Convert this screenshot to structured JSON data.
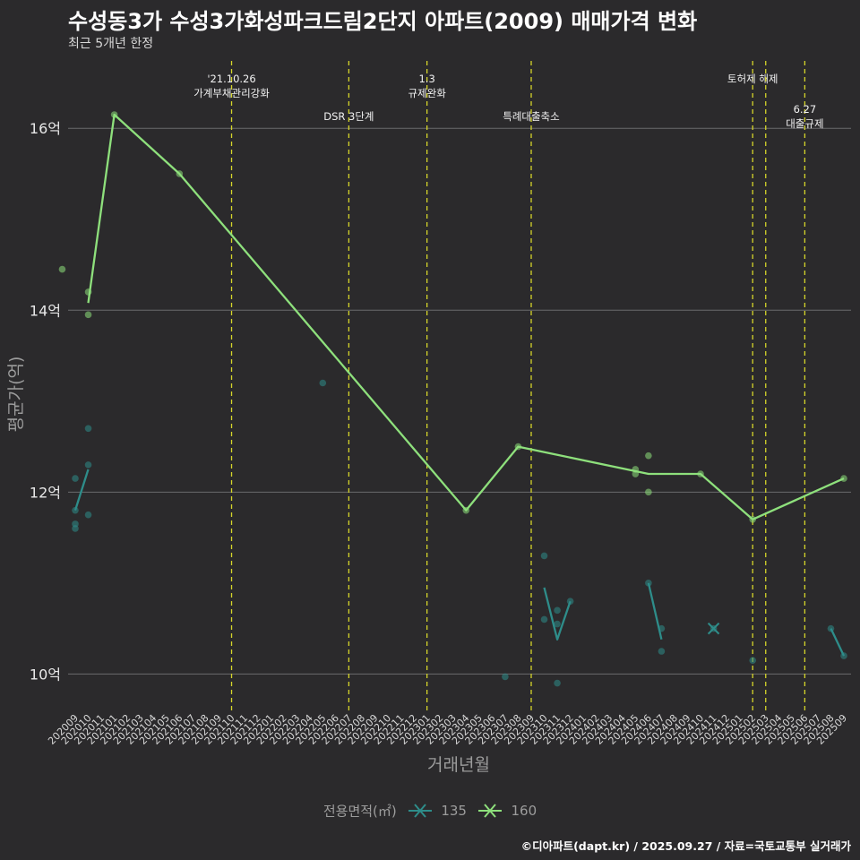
{
  "title": "수성동3가 수성3가화성파크드림2단지 아파트(2009) 매매가격 변화",
  "subtitle": "최근 5개년 한정",
  "caption": "©디아파트(dapt.kr) / 2025.09.27 / 자료=국토교통부 실거래가",
  "legend": {
    "title": "전용면적(㎡)",
    "items": [
      {
        "label": "135",
        "color": "#2e8d8a"
      },
      {
        "label": "160",
        "color": "#8ee07c"
      }
    ]
  },
  "chart_data": {
    "type": "line",
    "xlabel": "거래년월",
    "ylabel": "평균가(억)",
    "ylim": [
      9.6,
      16.8
    ],
    "yticks": [
      10,
      12,
      14,
      16
    ],
    "ytick_labels": [
      "10억",
      "12억",
      "14억",
      "16억"
    ],
    "x": [
      "202009",
      "202010",
      "202011",
      "202101",
      "202102",
      "202103",
      "202104",
      "202105",
      "202106",
      "202107",
      "202108",
      "202109",
      "202110",
      "202111",
      "202112",
      "202201",
      "202202",
      "202203",
      "202204",
      "202205",
      "202206",
      "202207",
      "202208",
      "202209",
      "202210",
      "202211",
      "202212",
      "202301",
      "202302",
      "202303",
      "202304",
      "202305",
      "202306",
      "202307",
      "202308",
      "202309",
      "202310",
      "202311",
      "202312",
      "202401",
      "202402",
      "202403",
      "202404",
      "202405",
      "202406",
      "202407",
      "202408",
      "202409",
      "202410",
      "202411",
      "202412",
      "202501",
      "202502",
      "202503",
      "202504",
      "202505",
      "202506",
      "202507",
      "202508",
      "202509"
    ],
    "grid": true,
    "legend_position": "bottom",
    "events": [
      {
        "x": "202110",
        "label": "'21.10.26\n가계부채관리강화",
        "row": 0
      },
      {
        "x": "202207",
        "label": "DSR 3단계",
        "row": 1
      },
      {
        "x": "202301",
        "label": "1.3\n규제완화",
        "row": 0
      },
      {
        "x": "202309",
        "label": "특례대출축소",
        "row": 1
      },
      {
        "x": "202502",
        "label": "토허제 해제",
        "row": 0
      },
      {
        "x": "202503",
        "label": "",
        "row": 0
      },
      {
        "x": "202506",
        "label": "6.27\n대출규제",
        "row": 2
      }
    ],
    "series": [
      {
        "name": "135",
        "color": "#2e8d8a",
        "line": [
          {
            "x": "202009",
            "y": 11.8
          },
          {
            "x": "202010",
            "y": 12.25
          }
        ],
        "line_segments": [
          [
            {
              "x": "202310",
              "y": 10.95
            },
            {
              "x": "202311",
              "y": 10.38
            },
            {
              "x": "202312",
              "y": 10.8
            }
          ],
          [
            {
              "x": "202406",
              "y": 11.0
            },
            {
              "x": "202407",
              "y": 10.38
            }
          ],
          [
            {
              "x": "202508",
              "y": 10.5
            },
            {
              "x": "202509",
              "y": 10.2
            }
          ]
        ],
        "points": [
          {
            "x": "202009",
            "y": 12.15
          },
          {
            "x": "202009",
            "y": 11.8
          },
          {
            "x": "202009",
            "y": 11.65
          },
          {
            "x": "202009",
            "y": 11.6
          },
          {
            "x": "202010",
            "y": 12.7
          },
          {
            "x": "202010",
            "y": 12.3
          },
          {
            "x": "202010",
            "y": 11.75
          },
          {
            "x": "202205",
            "y": 13.2
          },
          {
            "x": "202307",
            "y": 9.97
          },
          {
            "x": "202310",
            "y": 11.3
          },
          {
            "x": "202310",
            "y": 10.6
          },
          {
            "x": "202311",
            "y": 10.7
          },
          {
            "x": "202311",
            "y": 10.55
          },
          {
            "x": "202311",
            "y": 9.9
          },
          {
            "x": "202312",
            "y": 10.8
          },
          {
            "x": "202406",
            "y": 11.0
          },
          {
            "x": "202407",
            "y": 10.5
          },
          {
            "x": "202407",
            "y": 10.25
          },
          {
            "x": "202411",
            "y": 10.5
          },
          {
            "x": "202502",
            "y": 10.15
          },
          {
            "x": "202508",
            "y": 10.5
          },
          {
            "x": "202509",
            "y": 10.2
          }
        ],
        "cross_marks": [
          {
            "x": "202411",
            "y": 10.5
          }
        ]
      },
      {
        "name": "160",
        "color": "#8ee07c",
        "line": [
          {
            "x": "202010",
            "y": 14.08
          },
          {
            "x": "202101",
            "y": 16.15
          },
          {
            "x": "202106",
            "y": 15.5
          },
          {
            "x": "202304",
            "y": 11.8
          },
          {
            "x": "202308",
            "y": 12.5
          },
          {
            "x": "202406",
            "y": 12.2
          },
          {
            "x": "202410",
            "y": 12.2
          },
          {
            "x": "202502",
            "y": 11.7
          },
          {
            "x": "202509",
            "y": 12.15
          }
        ],
        "points": [
          {
            "x": "202010",
            "y": 14.2
          },
          {
            "x": "202010",
            "y": 13.95
          },
          {
            "x": "202012",
            "y": 14.45
          },
          {
            "x": "202101",
            "y": 16.15
          },
          {
            "x": "202106",
            "y": 15.5
          },
          {
            "x": "202304",
            "y": 11.8
          },
          {
            "x": "202308",
            "y": 12.5
          },
          {
            "x": "202405",
            "y": 12.25
          },
          {
            "x": "202405",
            "y": 12.2
          },
          {
            "x": "202406",
            "y": 12.4
          },
          {
            "x": "202406",
            "y": 12.0
          },
          {
            "x": "202410",
            "y": 12.2
          },
          {
            "x": "202502",
            "y": 11.7
          },
          {
            "x": "202509",
            "y": 12.15
          }
        ]
      }
    ]
  }
}
